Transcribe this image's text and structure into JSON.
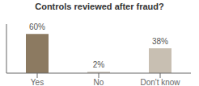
{
  "chart_data": {
    "type": "bar",
    "title": "Controls reviewed after fraud?",
    "categories": [
      "Yes",
      "No",
      "Don't know"
    ],
    "values": [
      60,
      2,
      38
    ],
    "value_labels": [
      "60%",
      "2%",
      "38%"
    ],
    "colors": [
      "#8c7a61",
      "#c8c0b4",
      "#c8bfb2"
    ],
    "ylim": [
      0,
      75
    ],
    "data_labels": true,
    "tick_labels": "x",
    "grid": false
  }
}
